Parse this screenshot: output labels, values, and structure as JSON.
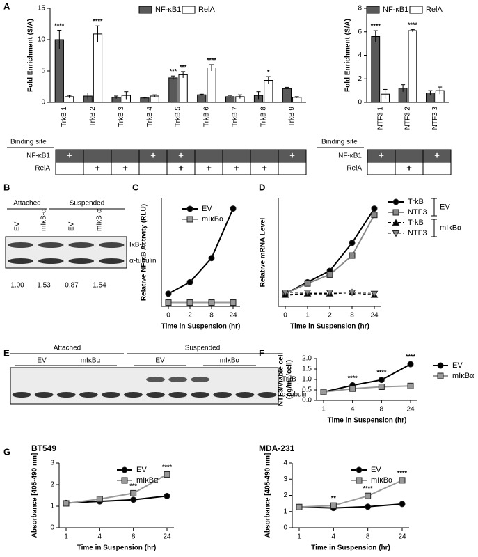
{
  "chart_data": [
    {
      "panel": "A",
      "type": "bar",
      "ylabel": "Fold Enrichment (S/A)",
      "categories": [
        "TrkB 1",
        "TrkB 2",
        "TrkB 3",
        "TrkB 4",
        "TrkB 5",
        "TrkB 6",
        "TrkB 7",
        "TrkB 8",
        "TrkB 9"
      ],
      "ylim": [
        0,
        15
      ],
      "yticks": [
        0,
        5,
        10,
        15
      ],
      "series": [
        {
          "name": "NF-κB1",
          "color": "#595959",
          "values": [
            10.0,
            1.0,
            0.8,
            0.7,
            3.9,
            1.2,
            0.9,
            1.1,
            2.2
          ],
          "errors": [
            1.5,
            0.5,
            0.2,
            0.1,
            0.3,
            0.1,
            0.2,
            0.6,
            0.2
          ],
          "significance": [
            "****",
            null,
            null,
            null,
            "***",
            null,
            null,
            null,
            null
          ]
        },
        {
          "name": "RelA",
          "color": "#ffffff",
          "values": [
            0.9,
            10.9,
            1.1,
            1.0,
            4.4,
            5.5,
            0.9,
            3.5,
            0.8
          ],
          "errors": [
            0.2,
            1.3,
            0.6,
            0.2,
            0.5,
            0.5,
            0.3,
            0.6,
            0.1
          ],
          "significance": [
            null,
            "****",
            null,
            null,
            "***",
            "****",
            null,
            "*",
            null
          ]
        }
      ]
    },
    {
      "type": "bar",
      "ylabel": "Fold Enrichment (S/A)",
      "categories": [
        "NTF3 1",
        "NTF3 2",
        "NTF3 3"
      ],
      "ylim": [
        0,
        8
      ],
      "yticks": [
        0,
        2,
        4,
        6,
        8
      ],
      "series": [
        {
          "name": "NF-κB1",
          "color": "#595959",
          "values": [
            5.6,
            1.2,
            0.8
          ],
          "errors": [
            0.5,
            0.3,
            0.2
          ],
          "significance": [
            "****",
            null,
            null
          ]
        },
        {
          "name": "RelA",
          "color": "#ffffff",
          "values": [
            0.7,
            6.1,
            1.0
          ],
          "errors": [
            0.4,
            0.1,
            0.3
          ],
          "significance": [
            null,
            "****",
            null
          ]
        }
      ]
    },
    {
      "panel": "C",
      "type": "line",
      "ylabel": "Relative NF-κB Activity (RLU)",
      "xlabel": "Time in Suspension (hr)",
      "categories": [
        "0",
        "2",
        "8",
        "24"
      ],
      "ylim": [
        0,
        8.5
      ],
      "series": [
        {
          "name": "EV",
          "color": "#000000",
          "marker": "circle",
          "values": [
            1.0,
            1.9,
            3.8,
            7.7
          ]
        },
        {
          "name": "mIκBα",
          "color": "#999999",
          "marker": "square",
          "values": [
            0.3,
            0.3,
            0.3,
            0.3
          ]
        }
      ]
    },
    {
      "panel": "D",
      "type": "line",
      "ylabel": "Relative mRNA Level",
      "xlabel": "Time in Suspension (hr)",
      "categories": [
        "0",
        "1",
        "2",
        "8",
        "24"
      ],
      "ylim": [
        0,
        8.5
      ],
      "legend_groups": [
        "EV",
        "mIκBα"
      ],
      "series": [
        {
          "name": "TrkB",
          "color": "#000000",
          "marker": "circle",
          "values": [
            1.0,
            1.9,
            2.8,
            5.0,
            7.7
          ]
        },
        {
          "name": "NTF3",
          "color": "#888888",
          "marker": "square",
          "values": [
            1.0,
            1.8,
            2.5,
            4.0,
            7.2
          ]
        },
        {
          "name": "TrkB",
          "color": "#000000",
          "marker": "triangle",
          "dashed": true,
          "values": [
            0.9,
            1.0,
            1.0,
            1.1,
            0.9
          ]
        },
        {
          "name": "NTF3",
          "color": "#888888",
          "marker": "triangle-down",
          "dashed": true,
          "values": [
            1.1,
            1.1,
            1.1,
            1.1,
            1.0
          ]
        }
      ]
    },
    {
      "panel": "F",
      "type": "line",
      "ylabel": [
        "NTF3/Viable cell",
        "(pg/mL/cell)"
      ],
      "xlabel": "Time in Suspension (hr)",
      "categories": [
        "1",
        "4",
        "8",
        "24"
      ],
      "ylim": [
        0,
        2
      ],
      "yticks": [
        {
          "value": 0,
          "label": "0.0"
        },
        0.5,
        {
          "value": 1,
          "label": "1.0"
        },
        1.5,
        {
          "value": 2,
          "label": "2.0"
        }
      ],
      "series": [
        {
          "name": "EV",
          "color": "#000000",
          "marker": "circle",
          "values": [
            0.4,
            0.72,
            0.98,
            1.73
          ],
          "significance": [
            null,
            "****",
            "****",
            "****"
          ]
        },
        {
          "name": "mIκBα",
          "color": "#999999",
          "marker": "square",
          "values": [
            0.4,
            0.56,
            0.65,
            0.69
          ]
        }
      ]
    },
    {
      "panel": "G",
      "type": "line",
      "title": "BT549",
      "ylabel": "Absorbance [405-490 nm]",
      "xlabel": "Time in Suspension (hr)",
      "categories": [
        "1",
        "4",
        "8",
        "24"
      ],
      "ylim": [
        0,
        3
      ],
      "yticks": [
        0,
        1,
        2,
        3
      ],
      "series": [
        {
          "name": "EV",
          "color": "#000000",
          "marker": "circle",
          "values": [
            1.15,
            1.22,
            1.3,
            1.47
          ]
        },
        {
          "name": "mIκBα",
          "color": "#999999",
          "marker": "square",
          "values": [
            1.13,
            1.33,
            1.6,
            2.47
          ],
          "significance": [
            null,
            null,
            "***",
            "****"
          ]
        }
      ]
    },
    {
      "type": "line",
      "title": "MDA-231",
      "ylabel": "Absorbance [405-490 nm]",
      "xlabel": "Time in Suspension (hr)",
      "categories": [
        "1",
        "4",
        "8",
        "24"
      ],
      "ylim": [
        0,
        4
      ],
      "yticks": [
        0,
        1,
        2,
        3,
        4
      ],
      "series": [
        {
          "name": "EV",
          "color": "#000000",
          "marker": "circle",
          "values": [
            1.28,
            1.22,
            1.3,
            1.47
          ]
        },
        {
          "name": "mIκBα",
          "color": "#999999",
          "marker": "square",
          "values": [
            1.28,
            1.37,
            1.97,
            2.93
          ],
          "significance": [
            null,
            "**",
            "****",
            "****"
          ]
        }
      ]
    }
  ],
  "binding_sites": {
    "header": "Binding site",
    "tables": [
      {
        "rows": [
          {
            "label": "NF-κB1",
            "cells": [
              "+",
              null,
              null,
              "+",
              "+",
              null,
              null,
              null,
              "+"
            ]
          },
          {
            "label": "RelA",
            "cells": [
              null,
              "+",
              "+",
              null,
              "+",
              "+",
              "+",
              "+",
              null
            ]
          }
        ]
      },
      {
        "rows": [
          {
            "label": "NF-κB1",
            "cells": [
              "+",
              null,
              "+"
            ]
          },
          {
            "label": "RelA",
            "cells": [
              null,
              "+",
              null
            ]
          }
        ]
      }
    ]
  },
  "blots": [
    {
      "panel": "B",
      "groups": [
        "Attached",
        "Suspended"
      ],
      "lanes": [
        "EV",
        "mIκB-α",
        "EV",
        "mIκB-α"
      ],
      "bands": [
        "IκB-α",
        "α-tubulin"
      ],
      "quantification": [
        "1.00",
        "1.53",
        "0.87",
        "1.54"
      ]
    },
    {
      "panel": "E",
      "groups": [
        "Attached",
        "Suspended"
      ],
      "lanes": [
        "EV",
        "mIκBα",
        "EV",
        "mIκBα"
      ],
      "bands": [
        "TrkB",
        "α-tubulin"
      ]
    }
  ]
}
